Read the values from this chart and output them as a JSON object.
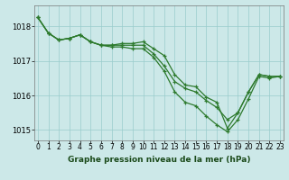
{
  "title": "Graphe pression niveau de la mer (hPa)",
  "background_color": "#cce8e8",
  "grid_color": "#99cccc",
  "line_color": "#2d7a2d",
  "x": [
    0,
    1,
    2,
    3,
    4,
    5,
    6,
    7,
    8,
    9,
    10,
    11,
    12,
    13,
    14,
    15,
    16,
    17,
    18,
    19,
    20,
    21,
    22,
    23
  ],
  "line1": [
    1018.25,
    1017.8,
    1017.6,
    1017.65,
    1017.75,
    1017.55,
    1017.45,
    1017.45,
    1017.5,
    1017.5,
    1017.55,
    1017.35,
    1017.15,
    1016.6,
    1016.3,
    1016.25,
    1015.95,
    1015.8,
    1015.05,
    1015.5,
    1016.1,
    1016.6,
    1016.55,
    1016.55
  ],
  "line2": [
    1018.25,
    1017.8,
    1017.6,
    1017.65,
    1017.75,
    1017.55,
    1017.45,
    1017.45,
    1017.45,
    1017.45,
    1017.45,
    1017.2,
    1016.85,
    1016.4,
    1016.2,
    1016.1,
    1015.85,
    1015.65,
    1015.3,
    1015.5,
    1016.1,
    1016.6,
    1016.55,
    1016.55
  ],
  "line3": [
    1018.25,
    1017.8,
    1017.6,
    1017.65,
    1017.75,
    1017.55,
    1017.45,
    1017.4,
    1017.4,
    1017.35,
    1017.35,
    1017.1,
    1016.7,
    1016.1,
    1015.8,
    1015.7,
    1015.4,
    1015.15,
    1014.95,
    1015.3,
    1015.9,
    1016.55,
    1016.5,
    1016.55
  ],
  "ylim": [
    1014.7,
    1018.6
  ],
  "yticks": [
    1015,
    1016,
    1017,
    1018
  ],
  "xlim": [
    -0.3,
    23.3
  ],
  "marker_size": 3.5,
  "line_width": 0.9,
  "title_fontsize": 6.5,
  "tick_fontsize": 5.5
}
